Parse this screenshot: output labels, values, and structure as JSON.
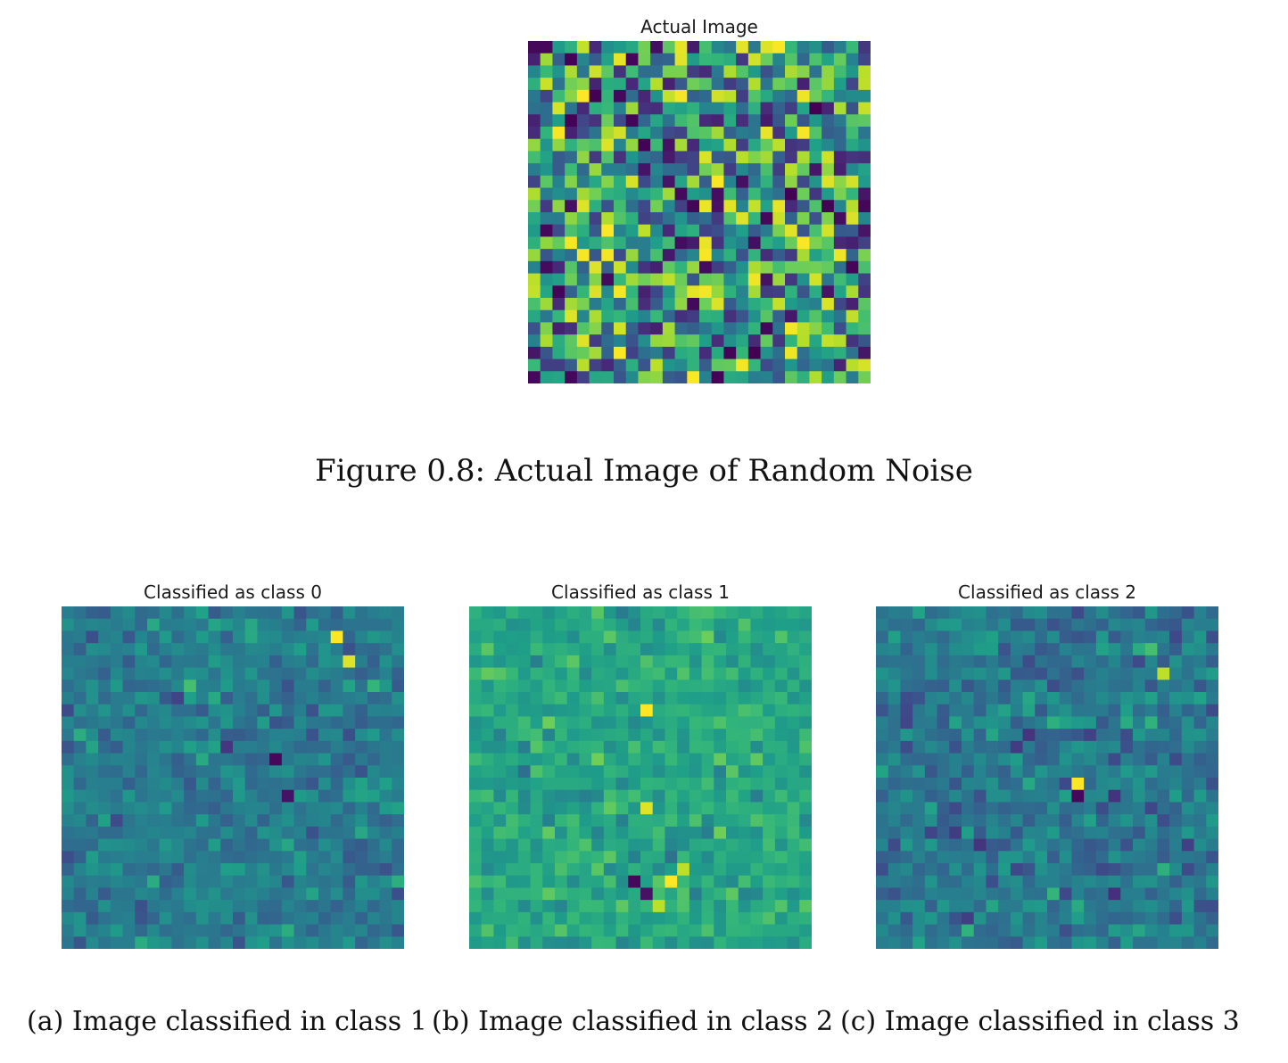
{
  "figure": {
    "caption": "Figure 0.8: Actual Image of Random Noise"
  },
  "subcaptions": [
    "(a) Image classified in class 1",
    "(b) Image classified in class 2",
    "(c) Image classified in class 3"
  ],
  "chart_data": [
    {
      "type": "heatmap",
      "title": "Actual Image",
      "grid": [
        28,
        28
      ],
      "colormap": "viridis",
      "description_values": "random noise"
    },
    {
      "type": "heatmap",
      "title": "Classified as class 0",
      "grid": [
        28,
        28
      ],
      "colormap": "viridis"
    },
    {
      "type": "heatmap",
      "title": "Classified as class 1",
      "grid": [
        28,
        28
      ],
      "colormap": "viridis"
    },
    {
      "type": "heatmap",
      "title": "Classified as class 2",
      "grid": [
        28,
        28
      ],
      "colormap": "viridis"
    }
  ]
}
